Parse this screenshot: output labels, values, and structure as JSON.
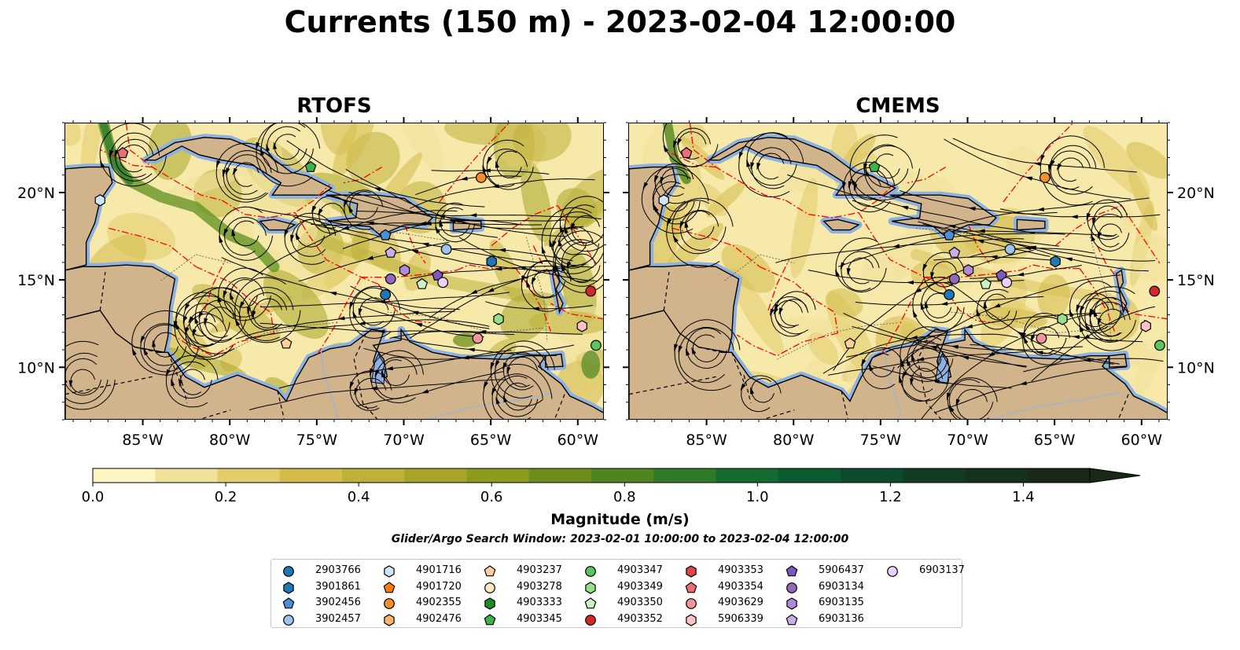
{
  "title": "Currents (150 m) - 2023-02-04 12:00:00",
  "panels": [
    {
      "title": "RTOFS",
      "id": "rtofs"
    },
    {
      "title": "CMEMS",
      "id": "cmems"
    }
  ],
  "lon_labels": [
    "85°W",
    "80°W",
    "75°W",
    "70°W",
    "65°W",
    "60°W"
  ],
  "lat_labels": [
    "20°N",
    "15°N",
    "10°N"
  ],
  "colorbar": {
    "label": "Magnitude (m/s)",
    "ticks": [
      "0.0",
      "0.2",
      "0.4",
      "0.6",
      "0.8",
      "1.0",
      "1.2",
      "1.4"
    ],
    "range": [
      0,
      1.5
    ],
    "extend": "max",
    "colors": [
      "#fdf6c2",
      "#f1e19a",
      "#e2cc6c",
      "#d3bb4c",
      "#bdb13a",
      "#a6a52a",
      "#8c9a1e",
      "#6e8e1c",
      "#4f8521",
      "#2f7a28",
      "#136b30",
      "#0c5a30",
      "#0b4a2c",
      "#123c24",
      "#15301c",
      "#182a17"
    ]
  },
  "search_window": "Glider/Argo Search Window: 2023-02-01 10:00:00 to 2023-02-04 12:00:00",
  "legend": [
    {
      "label": "2903766",
      "marker": "circle",
      "color": "#1f77b4"
    },
    {
      "label": "3901861",
      "marker": "hexagon",
      "color": "#1f77b4"
    },
    {
      "label": "3902456",
      "marker": "pentagon",
      "color": "#4a90d9"
    },
    {
      "label": "3902457",
      "marker": "circle",
      "color": "#9cc4ec"
    },
    {
      "label": "4901716",
      "marker": "hexagon",
      "color": "#cfe6f8"
    },
    {
      "label": "4901720",
      "marker": "pentagon",
      "color": "#ff7f0e"
    },
    {
      "label": "4902355",
      "marker": "circle",
      "color": "#f28e2b"
    },
    {
      "label": "4902476",
      "marker": "hexagon",
      "color": "#ffb366"
    },
    {
      "label": "4903237",
      "marker": "pentagon",
      "color": "#ffd09a"
    },
    {
      "label": "4903278",
      "marker": "circle",
      "color": "#ffe3c4"
    },
    {
      "label": "4903333",
      "marker": "hexagon",
      "color": "#1a8c28"
    },
    {
      "label": "4903345",
      "marker": "pentagon",
      "color": "#3cb44b"
    },
    {
      "label": "4903347",
      "marker": "circle",
      "color": "#5fc460"
    },
    {
      "label": "4903349",
      "marker": "hexagon",
      "color": "#98df8a"
    },
    {
      "label": "4903350",
      "marker": "pentagon",
      "color": "#c9f2c0"
    },
    {
      "label": "4903352",
      "marker": "circle",
      "color": "#d62728"
    },
    {
      "label": "4903353",
      "marker": "hexagon",
      "color": "#e0474c"
    },
    {
      "label": "4903354",
      "marker": "pentagon",
      "color": "#ec6e73"
    },
    {
      "label": "4903629",
      "marker": "circle",
      "color": "#f29598"
    },
    {
      "label": "5906339",
      "marker": "hexagon",
      "color": "#fbc3c3"
    },
    {
      "label": "5906437",
      "marker": "pentagon",
      "color": "#7e57c2"
    },
    {
      "label": "6903134",
      "marker": "circle",
      "color": "#9467bd"
    },
    {
      "label": "6903135",
      "marker": "hexagon",
      "color": "#b08ad6"
    },
    {
      "label": "6903136",
      "marker": "pentagon",
      "color": "#c9aee8"
    },
    {
      "label": "6903137",
      "marker": "circle",
      "color": "#e9d3fb"
    }
  ],
  "floats": {
    "rtofs": [
      {
        "id": "4903354",
        "lon": -86.2,
        "lat": 22.3
      },
      {
        "id": "4901716",
        "lon": -87.5,
        "lat": 19.6
      },
      {
        "id": "4903345",
        "lon": -75.4,
        "lat": 21.5
      },
      {
        "id": "4902355",
        "lon": -65.6,
        "lat": 20.9
      },
      {
        "id": "3902456",
        "lon": -71.1,
        "lat": 17.6
      },
      {
        "id": "3902457",
        "lon": -67.6,
        "lat": 16.8
      },
      {
        "id": "3901861",
        "lon": -65.0,
        "lat": 16.1
      },
      {
        "id": "6903136",
        "lon": -70.8,
        "lat": 16.6
      },
      {
        "id": "6903135",
        "lon": -70.0,
        "lat": 15.6
      },
      {
        "id": "6903134",
        "lon": -70.8,
        "lat": 15.1
      },
      {
        "id": "5906437",
        "lon": -68.1,
        "lat": 15.3
      },
      {
        "id": "6903137",
        "lon": -67.8,
        "lat": 14.9
      },
      {
        "id": "4903350",
        "lon": -69.0,
        "lat": 14.8
      },
      {
        "id": "2903766",
        "lon": -71.1,
        "lat": 14.2
      },
      {
        "id": "4903352",
        "lon": -59.3,
        "lat": 14.4
      },
      {
        "id": "5906339",
        "lon": -59.8,
        "lat": 12.4
      },
      {
        "id": "4903349",
        "lon": -64.6,
        "lat": 12.8
      },
      {
        "id": "4903629",
        "lon": -65.8,
        "lat": 11.7
      },
      {
        "id": "4903347",
        "lon": -59.0,
        "lat": 11.3
      },
      {
        "id": "4903237",
        "lon": -76.8,
        "lat": 11.4
      }
    ],
    "cmems": [
      {
        "id": "4903354",
        "lon": -86.2,
        "lat": 22.3
      },
      {
        "id": "4901716",
        "lon": -87.5,
        "lat": 19.6
      },
      {
        "id": "4903345",
        "lon": -75.4,
        "lat": 21.5
      },
      {
        "id": "4902355",
        "lon": -65.6,
        "lat": 20.9
      },
      {
        "id": "3902456",
        "lon": -71.1,
        "lat": 17.6
      },
      {
        "id": "3902457",
        "lon": -67.6,
        "lat": 16.8
      },
      {
        "id": "3901861",
        "lon": -65.0,
        "lat": 16.1
      },
      {
        "id": "6903136",
        "lon": -70.8,
        "lat": 16.6
      },
      {
        "id": "6903135",
        "lon": -70.0,
        "lat": 15.6
      },
      {
        "id": "6903134",
        "lon": -70.8,
        "lat": 15.1
      },
      {
        "id": "5906437",
        "lon": -68.1,
        "lat": 15.3
      },
      {
        "id": "6903137",
        "lon": -67.8,
        "lat": 14.9
      },
      {
        "id": "4903350",
        "lon": -69.0,
        "lat": 14.8
      },
      {
        "id": "2903766",
        "lon": -71.1,
        "lat": 14.2
      },
      {
        "id": "4903352",
        "lon": -59.3,
        "lat": 14.4
      },
      {
        "id": "5906339",
        "lon": -59.8,
        "lat": 12.4
      },
      {
        "id": "4903349",
        "lon": -64.6,
        "lat": 12.8
      },
      {
        "id": "4903629",
        "lon": -65.8,
        "lat": 11.7
      },
      {
        "id": "4903347",
        "lon": -59.0,
        "lat": 11.3
      },
      {
        "id": "4903237",
        "lon": -76.8,
        "lat": 11.4
      }
    ]
  },
  "map_extent": {
    "lon": [
      -89.5,
      -58.5
    ],
    "lat": [
      7,
      24
    ]
  },
  "colors": {
    "land": "#d2b48c",
    "water": "#8fb1e0",
    "eez": "#ff0000"
  }
}
